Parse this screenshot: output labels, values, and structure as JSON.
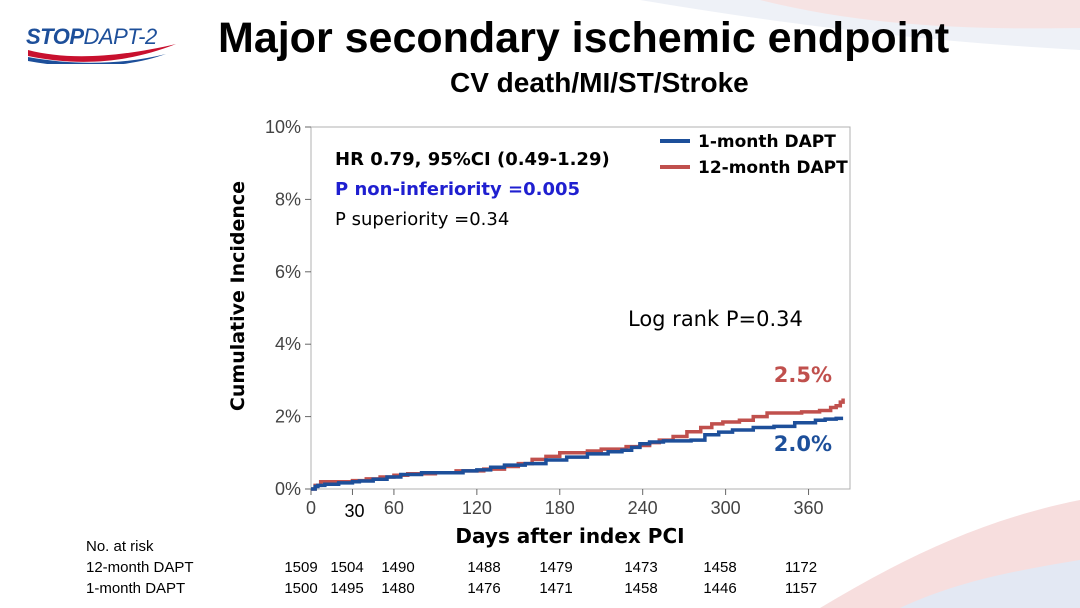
{
  "header": {
    "logo_stop": "STOP",
    "logo_dapt": "DAPT-2",
    "title": "Major secondary ischemic endpoint",
    "subtitle": "CV death/MI/ST/Stroke"
  },
  "colors": {
    "one_month": "#1d4f9a",
    "twelve_month": "#c0504d",
    "p_noninferiority": "#1f1fd0",
    "logo_red": "#c8102e",
    "logo_blue": "#1d4f9a"
  },
  "annotations": {
    "hr": "HR 0.79, 95%CI (0.49-1.29)",
    "p_noninf": "P non-inferiority =0.005",
    "p_sup": "P superiority =0.34",
    "logrank": "Log rank P=0.34",
    "end_12m": "2.5%",
    "end_1m": "2.0%"
  },
  "chart_data": {
    "type": "line",
    "step": true,
    "xlabel": "Days after index PCI",
    "ylabel": "Cumulative Incidence",
    "xlim": [
      0,
      390
    ],
    "ylim": [
      0,
      10
    ],
    "xticks": [
      "0",
      "30",
      "60",
      "120",
      "180",
      "240",
      "300",
      "360"
    ],
    "xtick_values": [
      0,
      30,
      60,
      120,
      180,
      240,
      300,
      360
    ],
    "yticks": [
      "0%",
      "2%",
      "4%",
      "6%",
      "8%",
      "10%"
    ],
    "ytick_values": [
      0,
      2,
      4,
      6,
      8,
      10
    ],
    "grid": false,
    "legend_position": "top-right",
    "series": [
      {
        "name": "1-month DAPT",
        "color": "#1d4f9a",
        "points": [
          [
            0,
            0
          ],
          [
            3,
            0.07
          ],
          [
            5,
            0.1
          ],
          [
            10,
            0.13
          ],
          [
            20,
            0.17
          ],
          [
            30,
            0.2
          ],
          [
            35,
            0.22
          ],
          [
            45,
            0.27
          ],
          [
            55,
            0.33
          ],
          [
            65,
            0.4
          ],
          [
            80,
            0.45
          ],
          [
            110,
            0.5
          ],
          [
            120,
            0.53
          ],
          [
            130,
            0.6
          ],
          [
            140,
            0.66
          ],
          [
            155,
            0.7
          ],
          [
            170,
            0.8
          ],
          [
            185,
            0.88
          ],
          [
            200,
            0.97
          ],
          [
            215,
            1.03
          ],
          [
            225,
            1.07
          ],
          [
            232,
            1.15
          ],
          [
            238,
            1.25
          ],
          [
            245,
            1.3
          ],
          [
            255,
            1.33
          ],
          [
            275,
            1.35
          ],
          [
            285,
            1.5
          ],
          [
            295,
            1.57
          ],
          [
            305,
            1.63
          ],
          [
            320,
            1.7
          ],
          [
            335,
            1.73
          ],
          [
            350,
            1.83
          ],
          [
            365,
            1.9
          ],
          [
            372,
            1.93
          ],
          [
            380,
            1.95
          ],
          [
            385,
            1.95
          ]
        ]
      },
      {
        "name": "12-month DAPT",
        "color": "#c0504d",
        "points": [
          [
            0,
            0
          ],
          [
            3,
            0.1
          ],
          [
            7,
            0.2
          ],
          [
            30,
            0.23
          ],
          [
            40,
            0.28
          ],
          [
            50,
            0.33
          ],
          [
            60,
            0.38
          ],
          [
            70,
            0.42
          ],
          [
            90,
            0.45
          ],
          [
            105,
            0.5
          ],
          [
            125,
            0.55
          ],
          [
            140,
            0.62
          ],
          [
            150,
            0.7
          ],
          [
            160,
            0.82
          ],
          [
            170,
            0.9
          ],
          [
            180,
            1.0
          ],
          [
            200,
            1.05
          ],
          [
            210,
            1.1
          ],
          [
            228,
            1.17
          ],
          [
            238,
            1.2
          ],
          [
            245,
            1.28
          ],
          [
            252,
            1.35
          ],
          [
            262,
            1.45
          ],
          [
            272,
            1.58
          ],
          [
            282,
            1.7
          ],
          [
            290,
            1.8
          ],
          [
            298,
            1.85
          ],
          [
            310,
            1.9
          ],
          [
            320,
            2.0
          ],
          [
            330,
            2.1
          ],
          [
            355,
            2.13
          ],
          [
            368,
            2.17
          ],
          [
            376,
            2.25
          ],
          [
            380,
            2.3
          ],
          [
            383,
            2.4
          ],
          [
            385,
            2.5
          ]
        ]
      }
    ],
    "risk_table": {
      "title": "No. at risk",
      "timepoints": [
        0,
        30,
        60,
        120,
        180,
        240,
        300,
        360
      ],
      "rows": [
        {
          "label": "12-month DAPT",
          "values": [
            "1509",
            "1504",
            "1490",
            "1488",
            "1479",
            "1473",
            "1458",
            "1172"
          ]
        },
        {
          "label": "1-month DAPT",
          "values": [
            "1500",
            "1495",
            "1480",
            "1476",
            "1471",
            "1458",
            "1446",
            "1157"
          ]
        }
      ]
    }
  }
}
